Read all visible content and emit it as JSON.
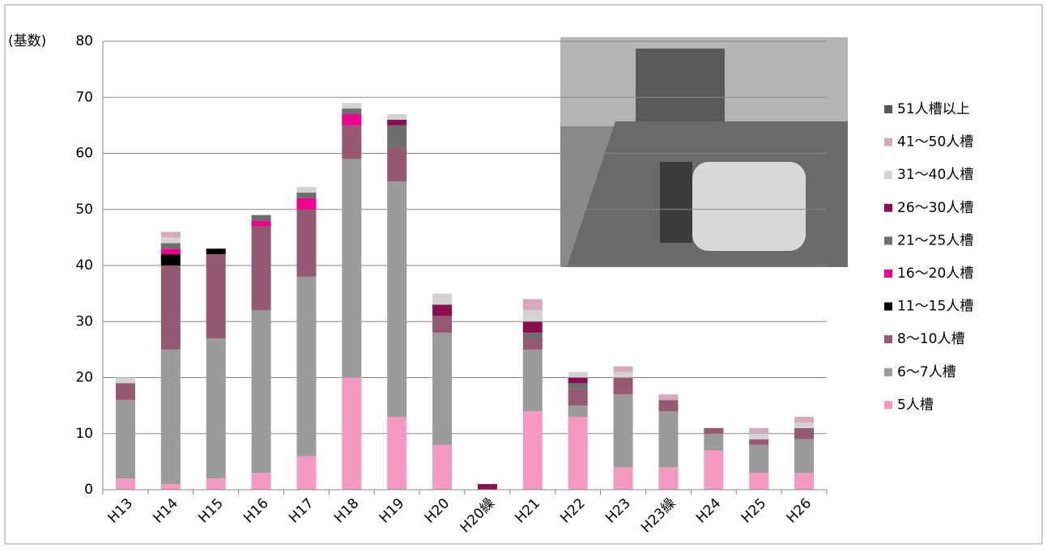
{
  "chart_data": {
    "type": "stacked-bar",
    "y_label": "(基数)",
    "categories": [
      "H13",
      "H14",
      "H15",
      "H16",
      "H17",
      "H18",
      "H19",
      "H20",
      "H20繰",
      "H21",
      "H22",
      "H23",
      "H23繰",
      "H24",
      "H25",
      "H26"
    ],
    "series": [
      {
        "name": "5人槽",
        "color": "#f49ac1",
        "values": [
          2,
          1,
          2,
          3,
          6,
          20,
          13,
          8,
          0,
          14,
          13,
          4,
          4,
          7,
          3,
          3
        ]
      },
      {
        "name": "6〜7人槽",
        "color": "#9b9b9b",
        "values": [
          14,
          24,
          25,
          29,
          32,
          39,
          42,
          20,
          0,
          11,
          2,
          13,
          10,
          3,
          5,
          6
        ]
      },
      {
        "name": "8〜10人槽",
        "color": "#955a72",
        "values": [
          3,
          15,
          15,
          15,
          12,
          6,
          6,
          3,
          0,
          2,
          3,
          3,
          2,
          1,
          1,
          2
        ]
      },
      {
        "name": "11〜15人槽",
        "color": "#000000",
        "values": [
          0,
          2,
          1,
          0,
          0,
          0,
          0,
          0,
          0,
          0,
          0,
          0,
          0,
          0,
          0,
          0
        ]
      },
      {
        "name": "16〜20人槽",
        "color": "#ec008c",
        "values": [
          0,
          1,
          0,
          1,
          2,
          2,
          0,
          0,
          0,
          0,
          0,
          0,
          0,
          0,
          0,
          0
        ]
      },
      {
        "name": "21〜25人槽",
        "color": "#6e6e6e",
        "values": [
          0,
          1,
          0,
          1,
          1,
          1,
          4,
          0,
          0,
          1,
          1,
          0,
          0,
          0,
          0,
          0
        ]
      },
      {
        "name": "26〜30人槽",
        "color": "#8a0f52",
        "values": [
          0,
          0,
          0,
          0,
          0,
          0,
          1,
          2,
          1,
          2,
          1,
          0,
          0,
          0,
          0,
          0
        ]
      },
      {
        "name": "31〜40人槽",
        "color": "#d3d3d3",
        "values": [
          1,
          1,
          0,
          0,
          1,
          1,
          1,
          2,
          0,
          2,
          1,
          1,
          0,
          0,
          1,
          1
        ]
      },
      {
        "name": "41〜50人槽",
        "color": "#d4a9bc",
        "values": [
          0,
          1,
          0,
          0,
          0,
          0,
          0,
          0,
          0,
          2,
          0,
          1,
          1,
          0,
          1,
          1
        ]
      },
      {
        "name": "51人槽以上",
        "color": "#595959",
        "values": [
          0,
          0,
          0,
          0,
          0,
          0,
          0,
          0,
          0,
          0,
          0,
          0,
          0,
          0,
          0,
          0
        ]
      }
    ],
    "ylim": [
      0,
      80
    ],
    "yticks": [
      0,
      10,
      20,
      30,
      40,
      50,
      60,
      70,
      80
    ],
    "grid": true
  }
}
